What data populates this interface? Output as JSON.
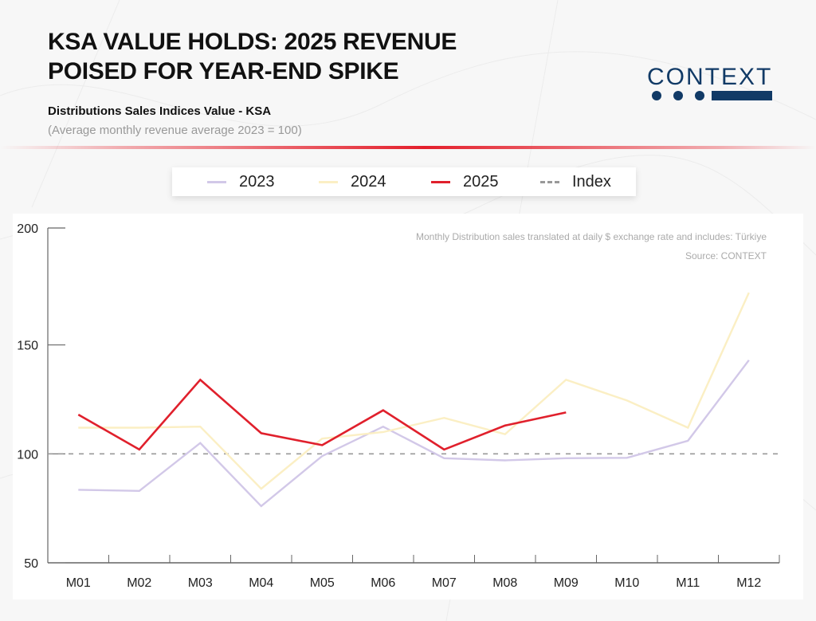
{
  "header": {
    "title_line1": "KSA VALUE HOLDS: 2025 REVENUE",
    "title_line2": "POISED FOR YEAR-END SPIKE",
    "subtitle": "Distributions Sales Indices Value - KSA",
    "subnote": "(Average monthly revenue average 2023 = 100)"
  },
  "logo": {
    "text": "CONTEXT",
    "color": "#113a66"
  },
  "notes": {
    "line1": "Monthly Distribution sales translated at daily $ exchange rate and includes: Türkiye",
    "line2": "Source: CONTEXT"
  },
  "chart_data": {
    "type": "line",
    "title": "Distributions Sales Indices Value - KSA",
    "subtitle": "(Average monthly revenue average 2023 = 100)",
    "xlabel": "",
    "ylabel": "",
    "categories": [
      "M01",
      "M02",
      "M03",
      "M04",
      "M05",
      "M06",
      "M07",
      "M08",
      "M09",
      "M10",
      "M11",
      "M12"
    ],
    "ylim": [
      50,
      200
    ],
    "yticks": [
      50,
      100,
      150,
      200
    ],
    "grid": false,
    "legend_position": "top-center",
    "series": [
      {
        "name": "2023",
        "color": "#d2c8e8",
        "values": [
          83.5,
          83,
          105,
          76,
          99,
          112.5,
          98,
          97,
          98,
          98.2,
          106,
          143
        ]
      },
      {
        "name": "2024",
        "color": "#fbefc4",
        "values": [
          112,
          112,
          112.5,
          84,
          107,
          110,
          116.5,
          109,
          134,
          124.5,
          112,
          174
        ]
      },
      {
        "name": "2025",
        "color": "#e0202c",
        "values": [
          118,
          102,
          134,
          109.5,
          104,
          120,
          102,
          113,
          119,
          null,
          null,
          null
        ]
      }
    ],
    "reference_line": {
      "name": "Index",
      "value": 100,
      "color": "#999999",
      "style": "dashed"
    }
  }
}
